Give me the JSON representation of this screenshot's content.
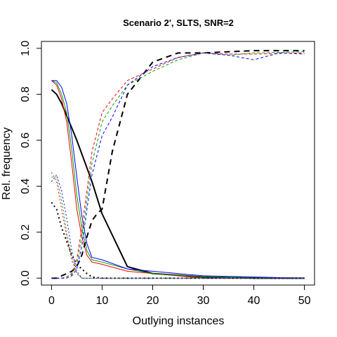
{
  "chart_data": {
    "type": "line",
    "title": "Scenario 2', SLTS, SNR=2",
    "xlabel": "Outlying instances",
    "ylabel": "Rel. frequency",
    "xlim": [
      -2,
      52
    ],
    "ylim": [
      -0.03,
      1.03
    ],
    "xticks": [
      0,
      10,
      20,
      30,
      40,
      50
    ],
    "xtick_labels": [
      "0",
      "10",
      "20",
      "30",
      "40",
      "50"
    ],
    "yticks": [
      0.0,
      0.2,
      0.4,
      0.6,
      0.8,
      1.0
    ],
    "ytick_labels": [
      "0.0",
      "0.2",
      "0.4",
      "0.6",
      "0.8",
      "1.0"
    ],
    "legend": "none",
    "series": [
      {
        "color": "#000000",
        "dash": "solid",
        "width": 2,
        "x": [
          0,
          1,
          2,
          5,
          8,
          10,
          15,
          20,
          30,
          40,
          50
        ],
        "y": [
          0.82,
          0.8,
          0.76,
          0.6,
          0.42,
          0.28,
          0.05,
          0.02,
          0.005,
          0.0,
          0.0
        ]
      },
      {
        "color": "#ff0000",
        "dash": "solid",
        "width": 1,
        "x": [
          0,
          1,
          2,
          3,
          4,
          5,
          6,
          7,
          8,
          10,
          15,
          20,
          30,
          50
        ],
        "y": [
          0.86,
          0.84,
          0.78,
          0.68,
          0.5,
          0.3,
          0.18,
          0.1,
          0.07,
          0.06,
          0.03,
          0.02,
          0.0,
          0.0
        ]
      },
      {
        "color": "#00a000",
        "dash": "solid",
        "width": 1,
        "x": [
          0,
          1,
          2,
          3,
          4,
          5,
          6,
          7,
          8,
          10,
          15,
          20,
          30,
          50
        ],
        "y": [
          0.86,
          0.85,
          0.8,
          0.72,
          0.56,
          0.36,
          0.22,
          0.12,
          0.08,
          0.07,
          0.04,
          0.02,
          0.005,
          0.0
        ]
      },
      {
        "color": "#0000ff",
        "dash": "solid",
        "width": 1,
        "x": [
          0,
          1,
          2,
          3,
          4,
          5,
          6,
          7,
          8,
          10,
          15,
          20,
          30,
          40,
          50
        ],
        "y": [
          0.86,
          0.86,
          0.83,
          0.76,
          0.62,
          0.44,
          0.27,
          0.15,
          0.09,
          0.08,
          0.04,
          0.03,
          0.01,
          0.005,
          0.0
        ]
      },
      {
        "color": "#000000",
        "dash": "8,6",
        "width": 2,
        "x": [
          0,
          1,
          2,
          3,
          4,
          5,
          6,
          7,
          8,
          9,
          10,
          12,
          15,
          20,
          25,
          30,
          40,
          50
        ],
        "y": [
          0.0,
          0.0,
          0.01,
          0.02,
          0.03,
          0.05,
          0.1,
          0.18,
          0.25,
          0.28,
          0.3,
          0.55,
          0.8,
          0.94,
          0.98,
          0.98,
          0.99,
          0.99
        ]
      },
      {
        "color": "#ff0000",
        "dash": "4,3",
        "width": 1,
        "x": [
          0,
          2,
          3,
          4,
          5,
          6,
          7,
          8,
          10,
          12,
          15,
          20,
          25,
          30,
          35,
          40,
          50
        ],
        "y": [
          0.0,
          0.0,
          0.005,
          0.02,
          0.08,
          0.22,
          0.38,
          0.55,
          0.72,
          0.78,
          0.86,
          0.91,
          0.96,
          0.98,
          0.975,
          0.975,
          0.98
        ]
      },
      {
        "color": "#00a000",
        "dash": "4,3",
        "width": 1,
        "x": [
          0,
          2,
          3,
          4,
          5,
          6,
          7,
          8,
          10,
          12,
          15,
          20,
          25,
          30,
          35,
          40,
          50
        ],
        "y": [
          0.0,
          0.0,
          0.005,
          0.015,
          0.06,
          0.18,
          0.34,
          0.5,
          0.68,
          0.75,
          0.84,
          0.9,
          0.95,
          0.98,
          0.97,
          0.98,
          0.985
        ]
      },
      {
        "color": "#0000ff",
        "dash": "4,3",
        "width": 1,
        "x": [
          0,
          2,
          3,
          4,
          5,
          6,
          7,
          8,
          10,
          12,
          15,
          20,
          25,
          30,
          35,
          40,
          45,
          50
        ],
        "y": [
          0.0,
          0.0,
          0.0,
          0.01,
          0.04,
          0.14,
          0.3,
          0.45,
          0.62,
          0.7,
          0.84,
          0.92,
          0.96,
          0.98,
          0.97,
          0.95,
          0.98,
          0.975
        ]
      },
      {
        "color": "#000000",
        "dash": "2,4",
        "width": 2,
        "x": [
          0,
          1,
          2,
          3,
          4,
          5,
          6,
          7,
          8,
          10,
          50
        ],
        "y": [
          0.33,
          0.3,
          0.22,
          0.16,
          0.1,
          0.06,
          0.04,
          0.02,
          0.005,
          0.0,
          0.0
        ]
      },
      {
        "color": "#ff0000",
        "dash": "2,3",
        "width": 1,
        "x": [
          0,
          1,
          2,
          3,
          4,
          5,
          6,
          7,
          50
        ],
        "y": [
          0.46,
          0.42,
          0.3,
          0.18,
          0.08,
          0.02,
          0.0,
          0.0,
          0.0
        ]
      },
      {
        "color": "#00a000",
        "dash": "2,3",
        "width": 1,
        "x": [
          0,
          1,
          2,
          3,
          4,
          5,
          6,
          7,
          50
        ],
        "y": [
          0.44,
          0.44,
          0.34,
          0.2,
          0.09,
          0.02,
          0.0,
          0.0,
          0.0
        ]
      },
      {
        "color": "#0000ff",
        "dash": "2,3",
        "width": 1,
        "x": [
          0,
          1,
          2,
          3,
          4,
          5,
          6,
          7,
          50
        ],
        "y": [
          0.42,
          0.45,
          0.38,
          0.26,
          0.12,
          0.03,
          0.0,
          0.0,
          0.0
        ]
      }
    ]
  }
}
